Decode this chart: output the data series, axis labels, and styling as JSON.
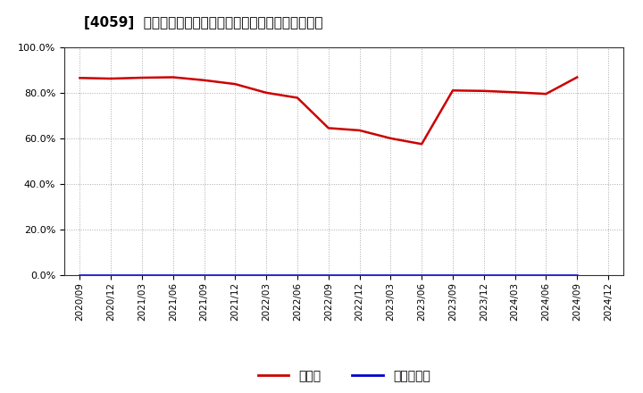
{
  "title": "[4059]  現預金、有利子負債の総資産に対する比率の推移",
  "x_labels": [
    "2020/09",
    "2020/12",
    "2021/03",
    "2021/06",
    "2021/09",
    "2021/12",
    "2022/03",
    "2022/06",
    "2022/09",
    "2022/12",
    "2023/03",
    "2023/06",
    "2023/09",
    "2023/12",
    "2024/03",
    "2024/06",
    "2024/09",
    "2024/12"
  ],
  "cash_values": [
    0.865,
    0.862,
    0.866,
    0.868,
    0.855,
    0.838,
    0.8,
    0.778,
    0.645,
    0.635,
    0.6,
    0.575,
    0.81,
    0.808,
    0.802,
    0.795,
    0.868,
    null
  ],
  "interest_values": [
    0.0,
    0.0,
    0.0,
    0.0,
    0.0,
    0.0,
    0.0,
    0.0,
    0.0,
    0.0,
    0.0,
    0.0,
    0.0,
    0.0,
    0.0,
    0.0,
    0.0,
    null
  ],
  "cash_color": "#cc0000",
  "interest_color": "#0000cc",
  "background_color": "#ffffff",
  "grid_color": "#aaaaaa",
  "title_fontsize": 11,
  "legend_labels": [
    "現預金",
    "有利子負債"
  ],
  "ylim": [
    0.0,
    1.0
  ],
  "yticks": [
    0.0,
    0.2,
    0.4,
    0.6,
    0.8,
    1.0
  ]
}
